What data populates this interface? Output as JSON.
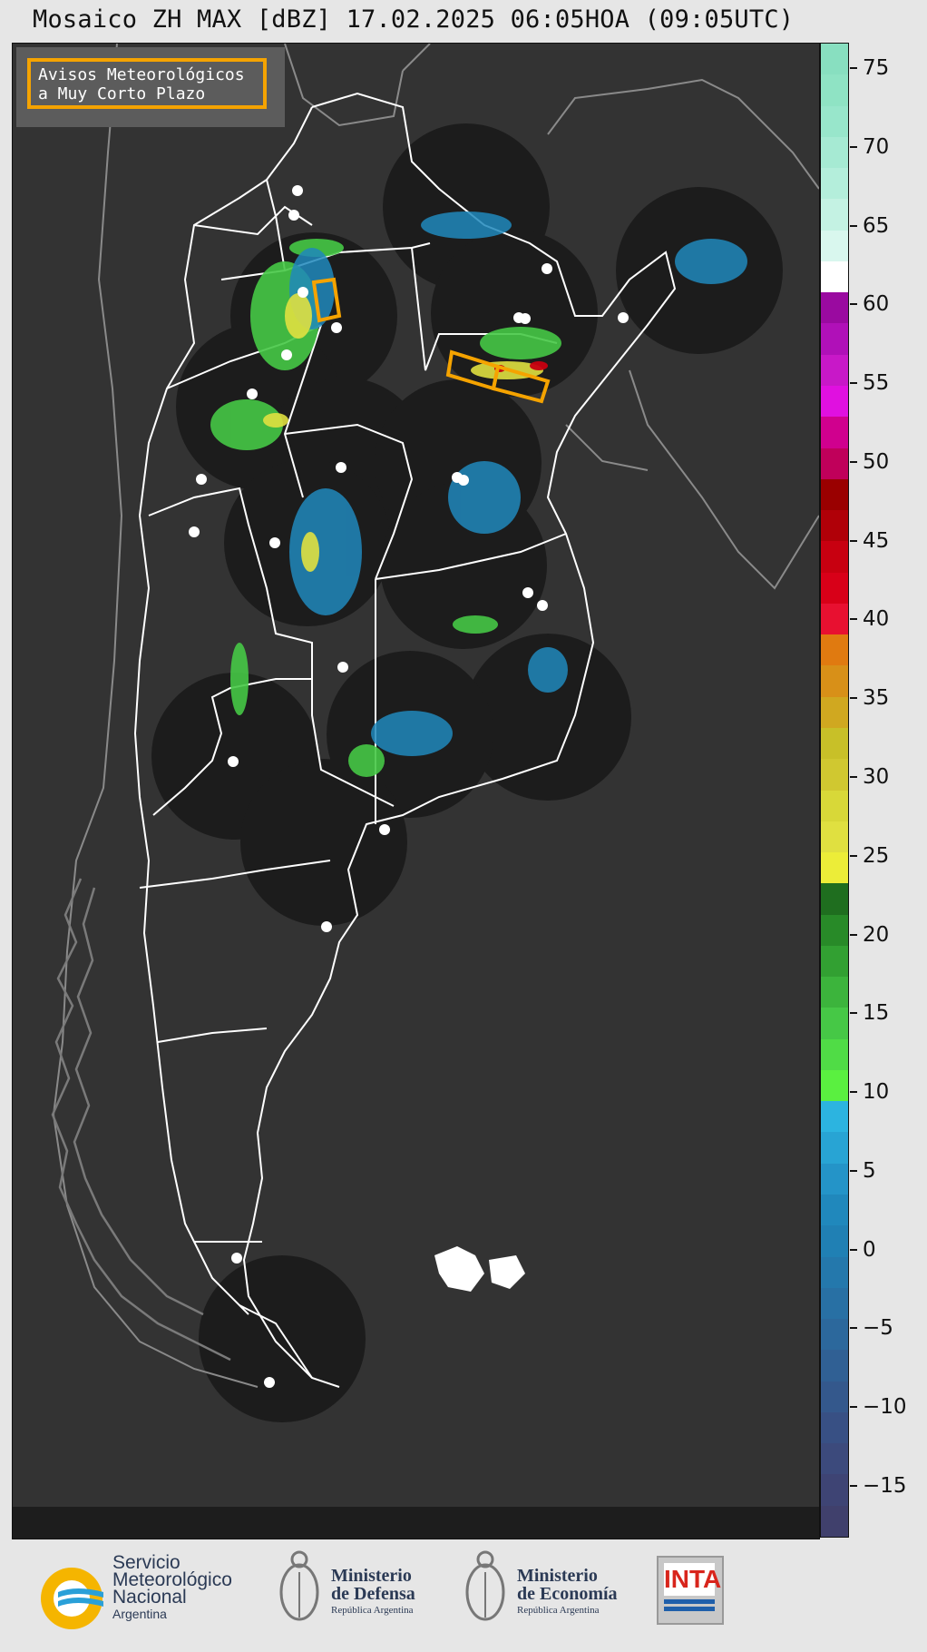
{
  "title": "Mosaico ZH MAX [dBZ] 17.02.2025 06:05HOA (09:05UTC)",
  "legend": {
    "line1": "Avisos Meteorológicos",
    "line2": "a Muy Corto Plazo",
    "border_color": "#f5a300"
  },
  "colorbar": {
    "unit": "dBZ",
    "ticks": [
      "75",
      "70",
      "65",
      "60",
      "55",
      "50",
      "45",
      "40",
      "35",
      "30",
      "25",
      "20",
      "15",
      "10",
      "5",
      "0",
      "−5",
      "−10",
      "−15"
    ],
    "colors_top_to_bottom": [
      "#88dfc0",
      "#8fe3c4",
      "#98e6cb",
      "#a6ead3",
      "#b4eedb",
      "#c4f2e3",
      "#d9f7ee",
      "#ffffff",
      "#9a0aa0",
      "#b010b8",
      "#c818c8",
      "#e010e0",
      "#d0008e",
      "#c0005a",
      "#9a0000",
      "#b00008",
      "#c80010",
      "#d80018",
      "#e81030",
      "#e07a10",
      "#d89018",
      "#d0a820",
      "#c8c028",
      "#d0c830",
      "#d8d838",
      "#e0e040",
      "#eced38",
      "#1f6e1f",
      "#288a28",
      "#32a032",
      "#3cb43c",
      "#46c846",
      "#50dc46",
      "#5af040",
      "#2cb4e0",
      "#28a4d4",
      "#2494c8",
      "#2088bc",
      "#2080b4",
      "#2478ac",
      "#2870a4",
      "#2c689c",
      "#306094",
      "#34588c",
      "#385084",
      "#3c4a7c",
      "#3e4474",
      "#40406c"
    ]
  },
  "map": {
    "background": "#333333",
    "radar_disc_color": "#1c1c1c",
    "outline_color": "#ffffff",
    "warning_color": "#f5a300"
  },
  "logos": {
    "smn": {
      "line1": "Servicio",
      "line2": "Meteorológico",
      "line3": "Nacional",
      "line4": "Argentina"
    },
    "defensa": {
      "line1": "Ministerio",
      "line2": "de Defensa",
      "line3": "República Argentina"
    },
    "economia": {
      "line1": "Ministerio",
      "line2": "de Economía",
      "line3": "República Argentina"
    },
    "inta": {
      "label": "INTA"
    }
  }
}
